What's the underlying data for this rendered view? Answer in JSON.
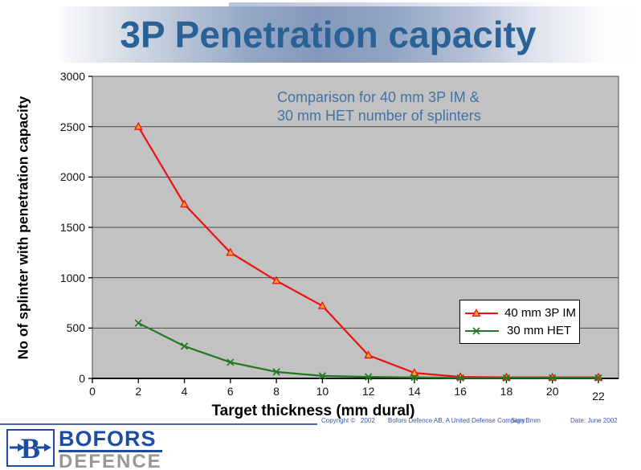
{
  "slide": {
    "title": "3P Penetration capacity"
  },
  "colors": {
    "title_blue": "#2b6295",
    "annotation_blue": "#4173a8",
    "footer_blue": "#3a57a8",
    "plot_bg": "#c2c2c2",
    "grid": "#4a4a4a",
    "axis": "#111111",
    "red": "#ee1111",
    "red_marker_fill": "#ffa420",
    "green": "#217821",
    "logo_blue": "#1e4ca1",
    "logo_gray": "#96989a"
  },
  "chart": {
    "annotation_line1": "Comparison for 40 mm 3P IM &",
    "annotation_line2": "30 mm HET number of splinters",
    "ylabel": "No of splinter with penetration capacity",
    "xlabel": "Target thickness (mm dural)"
  },
  "chart_data": {
    "type": "line",
    "title": "Comparison for 40 mm 3P IM & 30 mm HET number of splinters",
    "xlabel": "Target thickness (mm dural)",
    "ylabel": "No of splinter with penetration capacity",
    "x": [
      2,
      4,
      6,
      8,
      10,
      12,
      14,
      16,
      18,
      20,
      22
    ],
    "series": [
      {
        "name": "40 mm 3P IM",
        "color": "#ee1111",
        "marker": "triangle",
        "values": [
          2500,
          1730,
          1250,
          970,
          720,
          230,
          55,
          15,
          10,
          10,
          10
        ]
      },
      {
        "name": "30 mm HET",
        "color": "#217821",
        "marker": "x",
        "values": [
          550,
          320,
          160,
          65,
          25,
          15,
          10,
          5,
          5,
          5,
          5
        ]
      }
    ],
    "xlim": [
      0,
      22
    ],
    "ylim": [
      0,
      3000
    ],
    "xticks": [
      0,
      2,
      4,
      6,
      8,
      10,
      12,
      14,
      16,
      18,
      20,
      22
    ],
    "yticks": [
      0,
      500,
      1000,
      1500,
      2000,
      2500,
      3000
    ],
    "grid": true,
    "legend_position": "inside-right-middle"
  },
  "footer": {
    "copyright_label": "Copyright ©",
    "year": "2002",
    "company": "Bofors Defence AB,  A United Defense Company",
    "sign": "Sign:Bmm",
    "date": "Date:  June 2002"
  },
  "logo": {
    "letter": "B",
    "brand": "BOFORS",
    "sub": "DEFENCE"
  }
}
